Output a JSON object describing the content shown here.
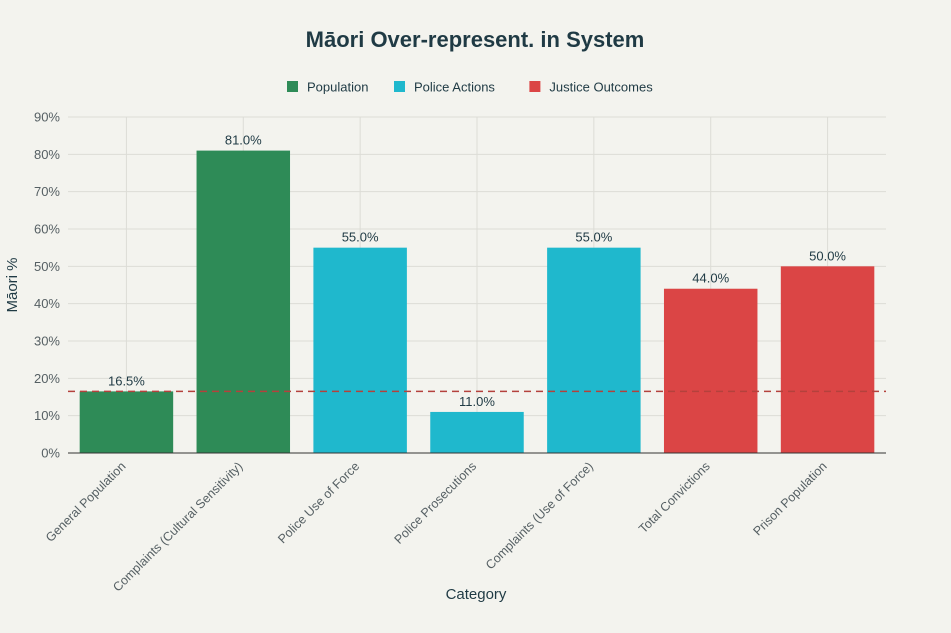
{
  "chart_data": {
    "type": "bar",
    "title": "Māori Over-represent. in System",
    "xlabel": "Category",
    "ylabel": "Māori %",
    "ylim": [
      0,
      90
    ],
    "yticks": [
      0,
      10,
      20,
      30,
      40,
      50,
      60,
      70,
      80,
      90
    ],
    "ytick_labels": [
      "0%",
      "10%",
      "20%",
      "30%",
      "40%",
      "50%",
      "60%",
      "70%",
      "80%",
      "90%"
    ],
    "categories": [
      "General Population",
      "Complaints (Cultural Sensitivity)",
      "Police Use of Force",
      "Police Prosecutions",
      "Complaints (Use of Force)",
      "Total Convictions",
      "Prison Population"
    ],
    "values": [
      16.5,
      81.0,
      55.0,
      11.0,
      55.0,
      44.0,
      50.0
    ],
    "data_labels": [
      "16.5%",
      "81.0%",
      "55.0%",
      "11.0%",
      "55.0%",
      "44.0%",
      "50.0%"
    ],
    "groups": [
      "Population",
      "Population",
      "Police Actions",
      "Police Actions",
      "Police Actions",
      "Justice Outcomes",
      "Justice Outcomes"
    ],
    "legend": [
      {
        "name": "Population",
        "color": "#2e8b57"
      },
      {
        "name": "Police Actions",
        "color": "#1fb8cd"
      },
      {
        "name": "Justice Outcomes",
        "color": "#db4545"
      }
    ],
    "legend_position": "top-center",
    "reference_line": {
      "value": 16.5,
      "style": "dashed",
      "color": "#b4413c"
    },
    "grid": true
  }
}
